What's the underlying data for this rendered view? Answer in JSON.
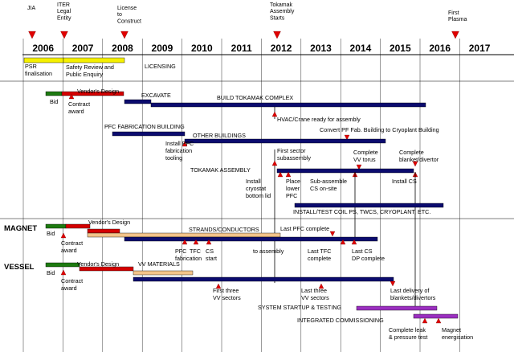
{
  "years": [
    "2006",
    "2007",
    "2008",
    "2009",
    "2010",
    "2011",
    "2012",
    "2013",
    "2014",
    "2015",
    "2016",
    "2017"
  ],
  "milestones": [
    {
      "id": "jia",
      "label": "JIA"
    },
    {
      "id": "iter-legal",
      "label": "ITER\nLegal\nEntity"
    },
    {
      "id": "license",
      "label": "License\nto\nConstruct"
    },
    {
      "id": "tokamak-start",
      "label": "Tokamak\nAssembly\nStarts"
    },
    {
      "id": "first-plasma",
      "label": "First\nPlasma"
    }
  ],
  "sections": {
    "magnet": "MAGNET",
    "vessel": "VESSEL"
  },
  "licensing": {
    "psr": "PSR\nfinalisation",
    "safety": "Safety Review and\nPublic Enquiry",
    "licensing": "LICENSING"
  },
  "site": {
    "bid": "Bid",
    "vendor_design": "Vendor's Design",
    "contract_award": "Contract\naward",
    "excavate": "EXCAVATE",
    "build_complex": "BUILD TOKAMAK COMPLEX",
    "hvac": "HVAC/Crane ready for assembly",
    "pfc_bldg": "PFC FABRICATION BUILDING",
    "convert_pf": "Convert PF Fab. Building to Cryoplant Building",
    "other_bldgs": "OTHER BUILDINGS",
    "install_pfc": "Install PFC\nfabrication\ntooling",
    "first_sector": "First sector\nsubassembly",
    "complete_vv": "Complete\nVV torus",
    "complete_blanket": "Complete\nblanket/divertor",
    "tokamak_assembly": "TOKAMAK ASSEMBLY",
    "install_cryostat": "Install\ncryostat\nbottom lid",
    "place_lower": "Place\nlower\nPFC",
    "sub_assemble_cs": "Sub-assemble\nCS on-site",
    "install_cs": "Install CS",
    "install_test": "INSTALL/TEST COIL PS, TWCS, CRYOPLANT, ETC."
  },
  "magnet": {
    "bid": "Bid",
    "vendor_design": "Vendor's Design",
    "contract_award": "Contract\naward",
    "strands": "STRANDS/CONDUCTORS",
    "last_pfc": "Last PFC complete",
    "pfc_fab": "PFC\nfabrication",
    "tfc": "TFC",
    "cs_start": "CS\nstart",
    "to_assembly": "to assembly",
    "last_tfc": "Last TFC\ncomplete",
    "last_cs": "Last CS\nDP complete"
  },
  "vessel": {
    "bid": "Bid",
    "vendor_design": "Vendor's Design",
    "contract_award": "Contract\naward",
    "vv_materials": "VV MATERIALS",
    "first_three": "First three\nVV sectors",
    "last_three": "Last three\nVV sectors",
    "last_delivery": "Last delivery of\nblankets/divertors",
    "system_startup": "SYSTEM STARTUP & TESTING",
    "integrated": "INTEGRATED COMMISSIONING",
    "complete_leak": "Complete leak\n& pressure test",
    "magnet_energ": "Magnet\nenergisation"
  },
  "colors": {
    "navy": "#0b0b6e",
    "red": "#d40000",
    "green": "#1d7a10",
    "yellow": "#f5f000",
    "tan": "#f3c48a",
    "purple": "#9b2fc0",
    "milestone": "#e00000",
    "line": "#000000"
  }
}
